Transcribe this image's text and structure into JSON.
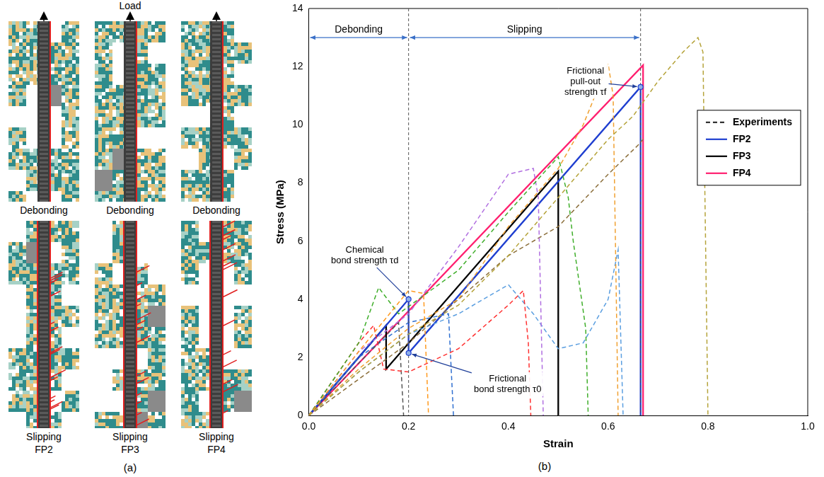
{
  "panel_a": {
    "label": "(a)",
    "load_label": "Load",
    "columns": [
      {
        "name": "FP2",
        "top": "Debonding",
        "bottom": "Slipping"
      },
      {
        "name": "FP3",
        "top": "Debonding",
        "bottom": "Slipping"
      },
      {
        "name": "FP4",
        "top": "Debonding",
        "bottom": "Slipping"
      }
    ]
  },
  "panel_b": {
    "label": "(b)"
  },
  "chart_data": {
    "type": "line",
    "x_label": "Strain",
    "y_label": "Stress (MPa)",
    "xlim": [
      0,
      1.0
    ],
    "ylim": [
      0,
      14
    ],
    "xticks": [
      {
        "value": 0,
        "label": "0.0"
      },
      0.2,
      0.4,
      0.6,
      0.8,
      {
        "value": 1.0,
        "label": "1.0"
      }
    ],
    "yticks": [
      0,
      2,
      4,
      6,
      8,
      10,
      12,
      14
    ],
    "grid": false,
    "legend": "right",
    "phases": [
      {
        "label": "Debonding",
        "from": 0,
        "to": 0.2,
        "y": 13
      },
      {
        "label": "Slipping",
        "from": 0.2,
        "to": 0.665,
        "y": 13
      }
    ],
    "annotations": [
      {
        "text": "Chemical\nbond strength τd",
        "x": 0.2,
        "y": 4.0
      },
      {
        "text": "Frictional\nbond strength τ0",
        "x": 0.2,
        "y": 2.15
      },
      {
        "text": "Frictional\npull-out\nstrength τf",
        "x": 0.665,
        "y": 11.3
      }
    ],
    "experiments": {
      "name": "Experiments",
      "line_style": "dashed",
      "curves": [
        {
          "color": "#b5a33a",
          "x": [
            0,
            0.1,
            0.2,
            0.3,
            0.4,
            0.5,
            0.6,
            0.65,
            0.7,
            0.75,
            0.78,
            0.79,
            0.8
          ],
          "values": [
            0,
            1.5,
            2.8,
            3.8,
            5.5,
            7.5,
            9.5,
            10.3,
            11.5,
            12.5,
            13.0,
            12.5,
            0
          ]
        },
        {
          "color": "#ff9a1f",
          "x": [
            0,
            0.1,
            0.2,
            0.23,
            0.24
          ],
          "values": [
            0,
            2.2,
            4.3,
            4.2,
            0
          ]
        },
        {
          "color": "#f0a030",
          "x": [
            0,
            0.1,
            0.2,
            0.3,
            0.4,
            0.5,
            0.55,
            0.6,
            0.61,
            0.62
          ],
          "values": [
            0,
            1.6,
            3.0,
            4.0,
            6.5,
            8.5,
            10.0,
            12.1,
            11.0,
            0
          ]
        },
        {
          "color": "#3fae2a",
          "x": [
            0,
            0.1,
            0.14,
            0.18,
            0.3,
            0.4,
            0.5,
            0.52,
            0.53,
            0.555,
            0.56
          ],
          "values": [
            0,
            2.5,
            4.4,
            3.5,
            5.0,
            7.0,
            8.9,
            7.5,
            6.0,
            3.0,
            0
          ]
        },
        {
          "color": "#b06ee0",
          "x": [
            0,
            0.1,
            0.2,
            0.3,
            0.4,
            0.45,
            0.46,
            0.47
          ],
          "values": [
            0,
            2.2,
            3.5,
            5.8,
            8.3,
            8.5,
            7.5,
            0
          ]
        },
        {
          "color": "#ff3030",
          "x": [
            0,
            0.1,
            0.13,
            0.15,
            0.2,
            0.3,
            0.4,
            0.43,
            0.44,
            0.445
          ],
          "values": [
            0,
            2.5,
            3.1,
            1.6,
            1.5,
            2.3,
            3.8,
            4.3,
            2.5,
            0
          ]
        },
        {
          "color": "#5a9ee0",
          "x": [
            0,
            0.1,
            0.2,
            0.3,
            0.4,
            0.45,
            0.5,
            0.55,
            0.6,
            0.62,
            0.63
          ],
          "values": [
            0,
            1.5,
            2.8,
            3.5,
            4.5,
            3.5,
            2.3,
            2.5,
            4.0,
            5.7,
            0
          ]
        },
        {
          "color": "#555555",
          "x": [
            0,
            0.1,
            0.18,
            0.19
          ],
          "values": [
            0,
            1.8,
            3.2,
            0
          ]
        },
        {
          "color": "#2f6fd0",
          "x": [
            0,
            0.1,
            0.2,
            0.28,
            0.29
          ],
          "values": [
            0,
            2.0,
            3.2,
            3.5,
            0
          ]
        },
        {
          "color": "#8b6e3a",
          "x": [
            0,
            0.2,
            0.4,
            0.5,
            0.6,
            0.66,
            0.67
          ],
          "values": [
            0,
            2.5,
            5.5,
            6.5,
            8.3,
            9.3,
            9.5
          ]
        }
      ]
    },
    "series": [
      {
        "name": "FP2",
        "color": "#1f3fd0",
        "line_style": "solid",
        "x": [
          0,
          0.2,
          0.2,
          0.665,
          0.665
        ],
        "values": [
          0,
          4.0,
          2.15,
          11.3,
          0
        ]
      },
      {
        "name": "FP3",
        "color": "#000000",
        "line_style": "solid",
        "x": [
          0,
          0.155,
          0.155,
          0.5,
          0.5
        ],
        "values": [
          0,
          3.1,
          1.6,
          8.4,
          0
        ]
      },
      {
        "name": "FP4",
        "color": "#ff1f6f",
        "line_style": "solid",
        "x": [
          0,
          0.67,
          0.67
        ],
        "values": [
          0,
          12.05,
          0
        ]
      }
    ]
  }
}
